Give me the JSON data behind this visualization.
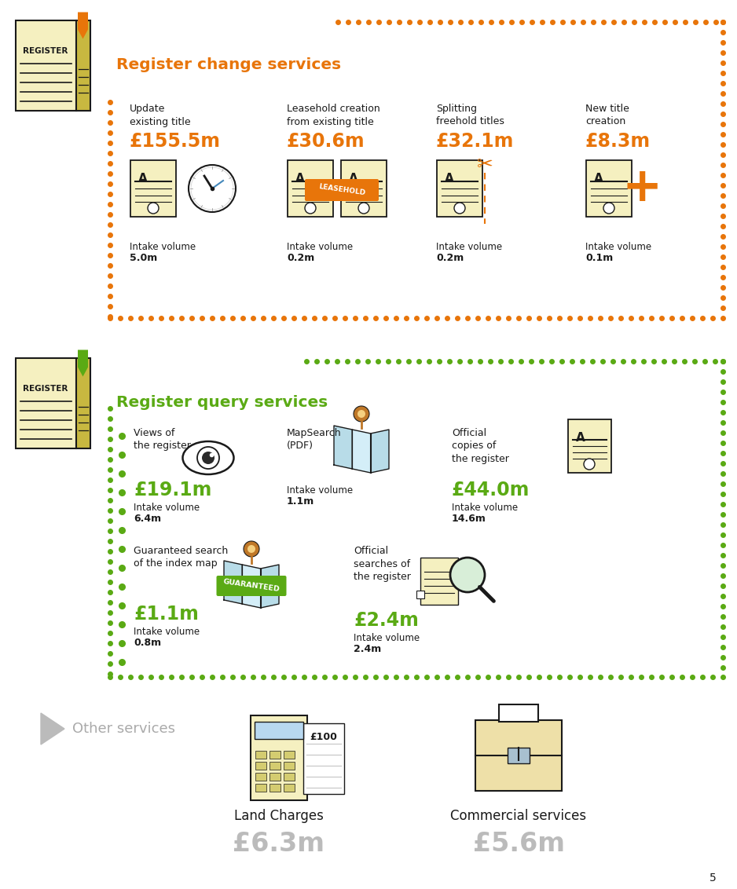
{
  "bg_color": "#ffffff",
  "orange": "#E8750A",
  "green": "#5AAA14",
  "gray_arrow": "#BBBBBB",
  "dark": "#1a1a1a",
  "section1_title": "Register change services",
  "section2_title": "Register query services",
  "section3_title": "Other services",
  "register_change": [
    {
      "label": "Update\nexisting title",
      "value": "£155.5m",
      "intake_label": "Intake volume",
      "intake_val": "5.0m"
    },
    {
      "label": "Leasehold creation\nfrom existing title",
      "value": "£30.6m",
      "intake_label": "Intake volume",
      "intake_val": "0.2m"
    },
    {
      "label": "Splitting\nfreehold titles",
      "value": "£32.1m",
      "intake_label": "Intake volume",
      "intake_val": "0.2m"
    },
    {
      "label": "New title\ncreation",
      "value": "£8.3m",
      "intake_label": "Intake volume",
      "intake_val": "0.1m"
    }
  ],
  "register_query_top": [
    {
      "label": "Views of\nthe register",
      "value": "£19.1m",
      "intake_label": "Intake volume",
      "intake_val": "6.4m"
    },
    {
      "label": "MapSearch\n(PDF)",
      "value": null,
      "intake_label": "Intake volume",
      "intake_val": "1.1m"
    },
    {
      "label": "Official\ncopies of\nthe register",
      "value": "£44.0m",
      "intake_label": "Intake volume",
      "intake_val": "14.6m"
    }
  ],
  "register_query_bot": [
    {
      "label": "Guaranteed search\nof the index map",
      "value": "£1.1m",
      "intake_label": "Intake volume",
      "intake_val": "0.8m"
    },
    {
      "label": "Official\nsearches of\nthe register",
      "value": "£2.4m",
      "intake_label": "Intake volume",
      "intake_val": "2.4m"
    }
  ],
  "other_services": [
    {
      "label": "Land Charges",
      "value": "£6.3m"
    },
    {
      "label": "Commercial services",
      "value": "£5.6m"
    }
  ],
  "page_number": "5",
  "doc_face": "#F5F0C0",
  "doc_spine": "#C8B840",
  "doc_edge": "#1a1a1a",
  "map_fill": "#B8DCE8",
  "pin_outer": "#C07828",
  "pin_inner": "#F5D080",
  "calc_face": "#F5F0C0",
  "calc_screen": "#B8D8F0",
  "calc_btn": "#D4CC70",
  "brief_face": "#EEE0A8",
  "clasp_fill": "#A8C0D0",
  "gray_value": "#BBBBBB"
}
